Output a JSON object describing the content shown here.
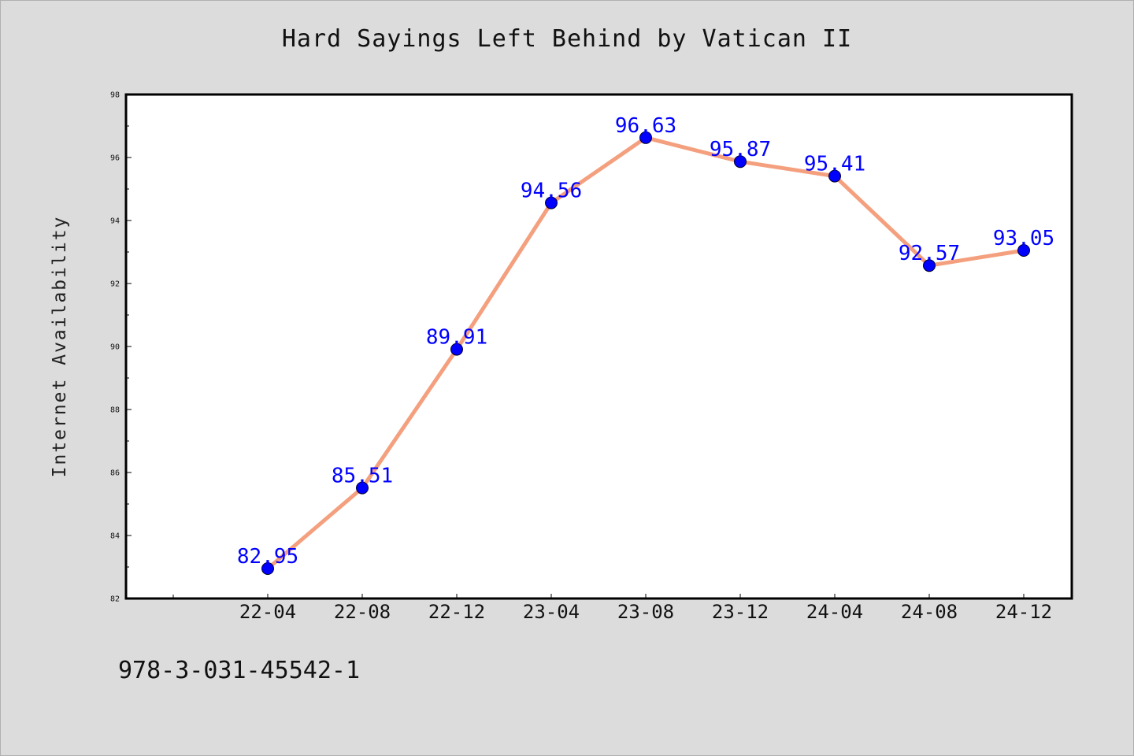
{
  "chart_data": {
    "type": "line",
    "title": "Hard Sayings Left Behind by Vatican II",
    "xlabel": "",
    "ylabel": "Internet Availability",
    "categories": [
      "22-04",
      "22-08",
      "22-12",
      "23-04",
      "23-08",
      "23-12",
      "24-04",
      "24-08",
      "24-12"
    ],
    "values": [
      82.95,
      85.51,
      89.91,
      94.56,
      96.63,
      95.87,
      95.41,
      92.57,
      93.05
    ],
    "value_labels": [
      "82.95",
      "85.51",
      "89.91",
      "94.56",
      "96.63",
      "95.87",
      "95.41",
      "92.57",
      "93.05"
    ],
    "ylim": [
      82,
      98
    ],
    "yticks": [
      82,
      84,
      86,
      88,
      90,
      92,
      94,
      96,
      98
    ],
    "grid": false,
    "legend": "none",
    "colors": {
      "line": "#f4a07e",
      "marker": "#0000ff",
      "label": "#0000ff",
      "background": "#dcdcdc",
      "plot_background": "#ffffff"
    }
  },
  "footnote": "978-3-031-45542-1"
}
